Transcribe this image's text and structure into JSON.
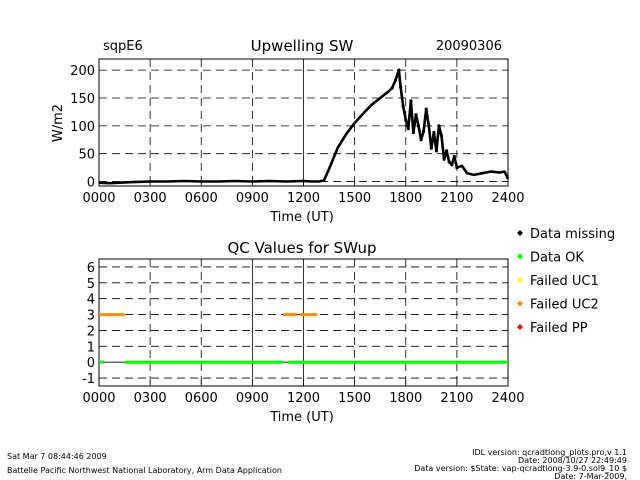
{
  "chart_data": [
    {
      "type": "scatter",
      "site": "sqpE6",
      "title": "Upwelling SW",
      "date": "20090306",
      "xlabel": "Time (UT)",
      "ylabel": "W/m2",
      "xlim": [
        0,
        2400
      ],
      "ylim": [
        -8,
        220
      ],
      "xticks": [
        "0000",
        "0300",
        "0600",
        "0900",
        "1200",
        "1500",
        "1800",
        "2100",
        "2400"
      ],
      "yticks": [
        0,
        50,
        100,
        150,
        200
      ],
      "grid": "dashed",
      "series": [
        {
          "name": "SWup",
          "x": [
            0,
            60,
            120,
            200,
            300,
            400,
            500,
            600,
            700,
            800,
            900,
            1000,
            1100,
            1200,
            1250,
            1290,
            1320,
            1360,
            1400,
            1450,
            1500,
            1550,
            1600,
            1650,
            1700,
            1720,
            1740,
            1760,
            1770,
            1785,
            1800,
            1815,
            1830,
            1845,
            1860,
            1875,
            1890,
            1905,
            1920,
            1935,
            1950,
            1965,
            1980,
            1995,
            2010,
            2025,
            2040,
            2055,
            2070,
            2085,
            2100,
            2130,
            2160,
            2200,
            2250,
            2300,
            2350,
            2380,
            2400
          ],
          "y": [
            -2,
            -3,
            -2,
            -1,
            0,
            0,
            1,
            0,
            0,
            1,
            0,
            1,
            0,
            1,
            0,
            0,
            2,
            30,
            60,
            85,
            105,
            122,
            138,
            150,
            162,
            168,
            182,
            200,
            170,
            135,
            110,
            95,
            145,
            88,
            120,
            100,
            75,
            90,
            130,
            100,
            60,
            88,
            55,
            100,
            82,
            40,
            55,
            35,
            30,
            45,
            25,
            28,
            15,
            12,
            15,
            18,
            16,
            18,
            5
          ]
        }
      ]
    },
    {
      "type": "scatter",
      "title": "QC Values for SWup",
      "xlabel": "Time (UT)",
      "xlim": [
        0,
        2400
      ],
      "ylim": [
        -1.5,
        6.5
      ],
      "xticks": [
        "0000",
        "0300",
        "0600",
        "0900",
        "1200",
        "1500",
        "1800",
        "2100",
        "2400"
      ],
      "yticks": [
        -1,
        0,
        1,
        2,
        3,
        4,
        5,
        6
      ],
      "grid": "dashed",
      "legend": "right",
      "legend_entries": [
        {
          "label": "Data missing",
          "color": "#000000"
        },
        {
          "label": "Data OK",
          "color": "#00ff00"
        },
        {
          "label": "Failed UC1",
          "color": "#ffff00"
        },
        {
          "label": "Failed UC2",
          "color": "#ff8c00"
        },
        {
          "label": "Failed PP",
          "color": "#ff0000"
        }
      ],
      "segments": [
        {
          "name": "Data OK",
          "color": "#00ff00",
          "value": 0,
          "x": [
            0,
            30
          ]
        },
        {
          "name": "Data OK",
          "color": "#00ff00",
          "value": 0,
          "x": [
            150,
            1080
          ]
        },
        {
          "name": "Data OK",
          "color": "#00ff00",
          "value": 0,
          "x": [
            1110,
            2400
          ]
        },
        {
          "name": "Failed UC2",
          "color": "#ff8c00",
          "value": 3,
          "x": [
            0,
            150
          ]
        },
        {
          "name": "Failed UC2",
          "color": "#ff8c00",
          "value": 3,
          "x": [
            1080,
            1160
          ]
        },
        {
          "name": "Failed UC2",
          "color": "#ff8c00",
          "value": 3,
          "x": [
            1180,
            1280
          ]
        }
      ]
    }
  ],
  "footer": {
    "timestamp": "Sat Mar  7 08:44:46 2009",
    "lab": "Battelle Pacific Northwest National Laboratory, Arm Data Application",
    "idl_version": "IDL version: qcradtlong_plots.pro,v 1.1",
    "idl_date": "Date: 2008/10/27 22:49:49",
    "data_version": "Data version: $State: vap-qcradtlong-3.9-0.sol9_10 $",
    "data_date": "Date: 7-Mar-2009,"
  }
}
